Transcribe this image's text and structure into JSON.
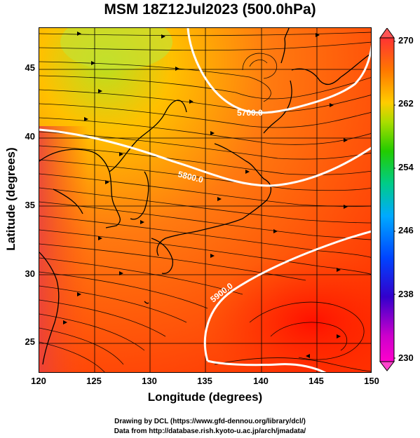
{
  "title": "MSM 18Z12Jul2023 (500.0hPa)",
  "xaxis": {
    "label": "Longitude (degrees)",
    "ticks": [
      "120",
      "125",
      "130",
      "135",
      "140",
      "145",
      "150"
    ],
    "range": [
      120,
      150
    ]
  },
  "yaxis": {
    "label": "Latitude  (degrees)",
    "ticks": [
      "25",
      "30",
      "35",
      "40",
      "45"
    ],
    "range": [
      22.4,
      47.6
    ]
  },
  "colorbar": {
    "ticks": [
      "270",
      "262",
      "254",
      "246",
      "238",
      "230"
    ],
    "range": [
      230,
      270
    ],
    "colors": [
      "#ff00ff",
      "#0000cc",
      "#00aaff",
      "#00cc66",
      "#66cc00",
      "#ffcc00",
      "#ff6600",
      "#ff2200"
    ]
  },
  "contours": [
    {
      "label": "5700.0",
      "color": "#ffffff"
    },
    {
      "label": "5800.0",
      "color": "#ffffff"
    },
    {
      "label": "5900.0",
      "color": "#ffffff"
    }
  ],
  "credits": {
    "line1": "Drawing by DCL (https://www.gfd-dennou.org/library/dcl/)",
    "line2": "Data from http://database.rish.kyoto-u.ac.jp/arch/jmadata/"
  },
  "chart_data": {
    "type": "heatmap",
    "title": "MSM 18Z12Jul2023 (500.0hPa)",
    "xlabel": "Longitude (degrees)",
    "ylabel": "Latitude  (degrees)",
    "xlim": [
      120,
      150
    ],
    "ylim": [
      22.4,
      47.6
    ],
    "colorbar_range": [
      230,
      270
    ],
    "contour_levels": [
      5700,
      5800,
      5900
    ],
    "grid": true
  }
}
